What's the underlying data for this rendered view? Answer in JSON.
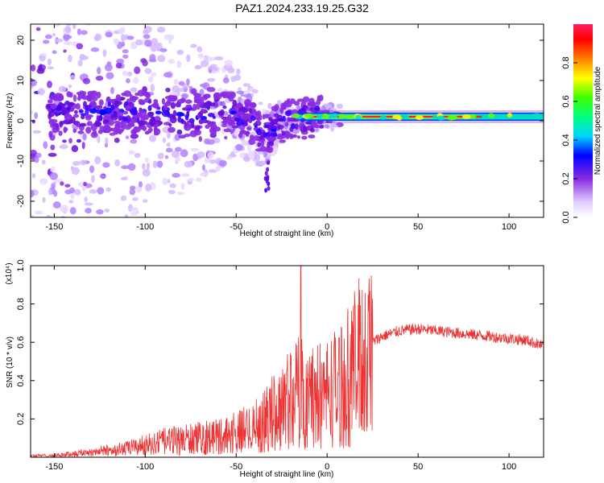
{
  "title": "PAZ1.2024.233.19.25.G32",
  "chart_data": [
    {
      "type": "heatmap",
      "title": "PAZ1.2024.233.19.25.G32",
      "xlabel": "Height of straight line (km)",
      "ylabel": "Frequency (Hz)",
      "xlim": [
        -163,
        119
      ],
      "ylim": [
        -24,
        24
      ],
      "x_ticks": [
        -150,
        -100,
        -50,
        0,
        50,
        100
      ],
      "y_ticks": [
        -20,
        -10,
        0,
        10,
        20
      ],
      "colorbar": {
        "label": "Normalized spectral amplitude",
        "range": [
          0,
          1
        ],
        "ticks": [
          0.0,
          0.2,
          0.4,
          0.6,
          0.8
        ]
      },
      "ridge": {
        "x": [
          -163,
          -140,
          -120,
          -100,
          -80,
          -60,
          -50,
          -40,
          -35,
          -30,
          -25,
          -20,
          -15,
          -10,
          -5,
          0,
          10,
          20,
          40,
          60,
          80,
          100,
          119
        ],
        "freq": [
          1,
          2,
          2,
          2,
          1,
          2,
          2,
          -1,
          -4,
          -2,
          -1,
          1,
          0.5,
          0.8,
          0.8,
          1,
          1,
          0.8,
          0.8,
          0.8,
          0.8,
          1,
          1
        ]
      }
    },
    {
      "type": "line",
      "xlabel": "Height of straight line (km)",
      "ylabel": "SNR (10 * v/v)",
      "y_multiplier": "(x10⁴)",
      "xlim": [
        -163,
        119
      ],
      "ylim": [
        0,
        1.0
      ],
      "x_ticks": [
        -150,
        -100,
        -50,
        0,
        50,
        100
      ],
      "y_ticks": [
        0.2,
        0.4,
        0.6,
        0.8,
        1.0
      ],
      "color": "#ee3333",
      "series": [
        {
          "x": [
            -163,
            -150,
            -140,
            -130,
            -120,
            -110,
            -100,
            -90,
            -80,
            -70,
            -60,
            -50,
            -45,
            -40,
            -35,
            -30,
            -25,
            -20,
            -15,
            -10,
            -5,
            0,
            5,
            10,
            15,
            20,
            25,
            30,
            40,
            50,
            60,
            70,
            80,
            90,
            100,
            110,
            119
          ],
          "values": [
            0.01,
            0.01,
            0.02,
            0.03,
            0.04,
            0.05,
            0.07,
            0.09,
            0.1,
            0.11,
            0.12,
            0.14,
            0.16,
            0.18,
            0.2,
            0.25,
            0.3,
            0.35,
            0.38,
            0.35,
            0.35,
            0.38,
            0.4,
            0.45,
            0.52,
            0.58,
            0.6,
            0.63,
            0.66,
            0.67,
            0.66,
            0.65,
            0.64,
            0.63,
            0.62,
            0.61,
            0.58
          ]
        }
      ]
    }
  ]
}
